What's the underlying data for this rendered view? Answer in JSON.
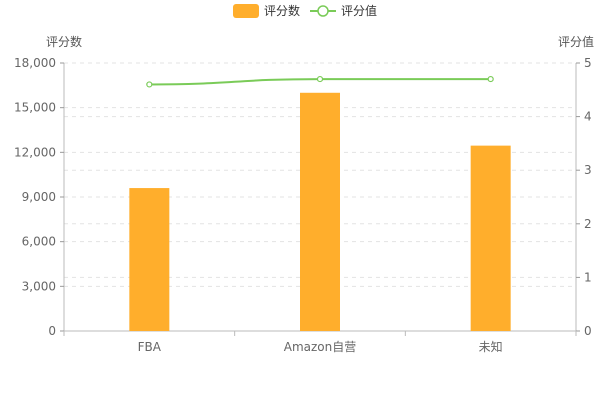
{
  "chart_data": {
    "type": "bar",
    "categories": [
      "FBA",
      "Amazon自营",
      "未知"
    ],
    "series": [
      {
        "name": "评分数",
        "type": "bar",
        "axis": "left",
        "values": [
          9600,
          16000,
          12450
        ],
        "color": "#FFAE2C"
      },
      {
        "name": "评分值",
        "type": "line",
        "axis": "right",
        "values": [
          4.6,
          4.7,
          4.7
        ],
        "color": "#7ACB58"
      }
    ],
    "y_left": {
      "label": "评分数",
      "ticks": [
        "0",
        "3,000",
        "6,000",
        "9,000",
        "12,000",
        "15,000",
        "18,000"
      ],
      "min": 0,
      "max": 18000
    },
    "y_right": {
      "label": "评分值",
      "ticks": [
        "0",
        "1",
        "2",
        "3",
        "4",
        "5"
      ],
      "min": 0,
      "max": 5
    },
    "legend_position": "top-center",
    "grid": true
  }
}
